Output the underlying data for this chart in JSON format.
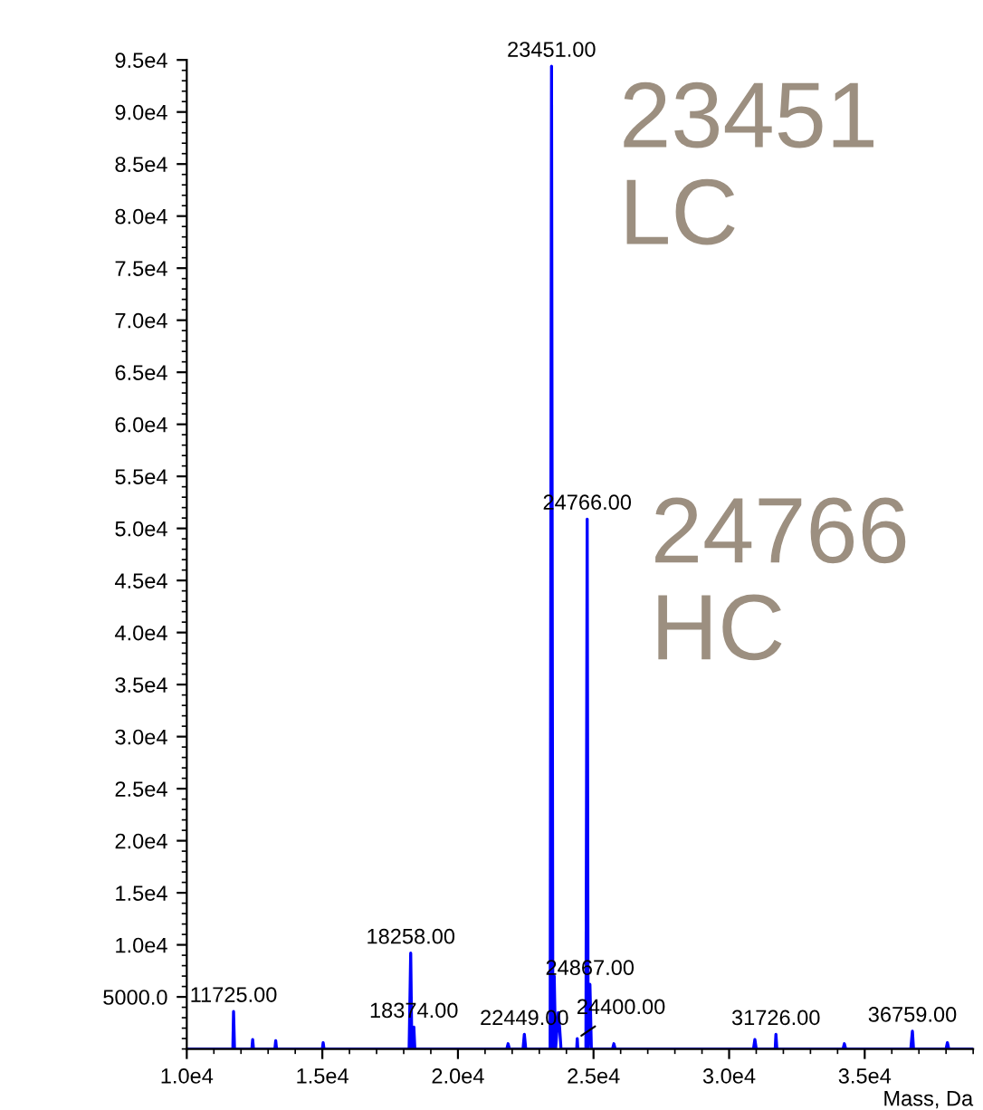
{
  "chart_data": {
    "type": "line",
    "xlabel": "Mass, Da",
    "x": [
      10000,
      11700,
      11725,
      11760,
      12400,
      12430,
      12460,
      13250,
      13280,
      13310,
      15000,
      15030,
      15060,
      18200,
      18258,
      18300,
      18374,
      18410,
      21800,
      21850,
      21900,
      22400,
      22449,
      22500,
      23400,
      23451,
      23500,
      23550,
      23600,
      23700,
      23750,
      23800,
      24380,
      24400,
      24420,
      24720,
      24766,
      24800,
      24867,
      24920,
      25700,
      25750,
      25800,
      30900,
      30950,
      31000,
      31700,
      31726,
      31760,
      34200,
      34250,
      34300,
      36700,
      36759,
      36800,
      38000,
      38050,
      38100,
      39000
    ],
    "series": [
      {
        "color": "#0000ff",
        "values": [
          0,
          0,
          3600,
          0,
          0,
          900,
          0,
          0,
          800,
          0,
          0,
          600,
          0,
          0,
          9200,
          0,
          2100,
          0,
          0,
          500,
          0,
          0,
          1400,
          0,
          0,
          94400,
          0,
          7000,
          0,
          3500,
          2000,
          0,
          0,
          1000,
          0,
          0,
          50900,
          0,
          6200,
          0,
          0,
          500,
          0,
          0,
          900,
          0,
          0,
          1400,
          0,
          0,
          500,
          0,
          0,
          1700,
          0,
          0,
          600,
          0,
          0
        ]
      }
    ],
    "xlim": [
      10000,
      39000
    ],
    "ylim": [
      0,
      95000
    ],
    "xticks": [
      {
        "value": 10000,
        "label": "1.0e4"
      },
      {
        "value": 15000,
        "label": "1.5e4"
      },
      {
        "value": 20000,
        "label": "2.0e4"
      },
      {
        "value": 25000,
        "label": "2.5e4"
      },
      {
        "value": 30000,
        "label": "3.0e4"
      },
      {
        "value": 35000,
        "label": "3.5e4"
      }
    ],
    "yticks": [
      {
        "value": 5000,
        "label": "5000.0"
      },
      {
        "value": 10000,
        "label": "1.0e4"
      },
      {
        "value": 15000,
        "label": "1.5e4"
      },
      {
        "value": 20000,
        "label": "2.0e4"
      },
      {
        "value": 25000,
        "label": "2.5e4"
      },
      {
        "value": 30000,
        "label": "3.0e4"
      },
      {
        "value": 35000,
        "label": "3.5e4"
      },
      {
        "value": 40000,
        "label": "4.0e4"
      },
      {
        "value": 45000,
        "label": "4.5e4"
      },
      {
        "value": 50000,
        "label": "5.0e4"
      },
      {
        "value": 55000,
        "label": "5.5e4"
      },
      {
        "value": 60000,
        "label": "6.0e4"
      },
      {
        "value": 65000,
        "label": "6.5e4"
      },
      {
        "value": 70000,
        "label": "7.0e4"
      },
      {
        "value": 75000,
        "label": "7.5e4"
      },
      {
        "value": 80000,
        "label": "8.0e4"
      },
      {
        "value": 85000,
        "label": "8.5e4"
      },
      {
        "value": 90000,
        "label": "9.0e4"
      },
      {
        "value": 95000,
        "label": "9.5e4"
      }
    ],
    "grid": false,
    "annotations": [
      {
        "text": "11725.00",
        "x": 11725,
        "y": 3600
      },
      {
        "text": "18258.00",
        "x": 18258,
        "y": 9200
      },
      {
        "text": "18374.00",
        "x": 18374,
        "y": 2100
      },
      {
        "text": "22449.00",
        "x": 22449,
        "y": 1400
      },
      {
        "text": "23451.00",
        "x": 23451,
        "y": 94400
      },
      {
        "text": "24400.00",
        "x": 24400,
        "y": 1000
      },
      {
        "text": "24766.00",
        "x": 24766,
        "y": 50900
      },
      {
        "text": "24867.00",
        "x": 24867,
        "y": 6200
      },
      {
        "text": "31726.00",
        "x": 31726,
        "y": 1400
      },
      {
        "text": "36759.00",
        "x": 36759,
        "y": 1700
      },
      "23451\nLC",
      "24766\nHC"
    ]
  }
}
